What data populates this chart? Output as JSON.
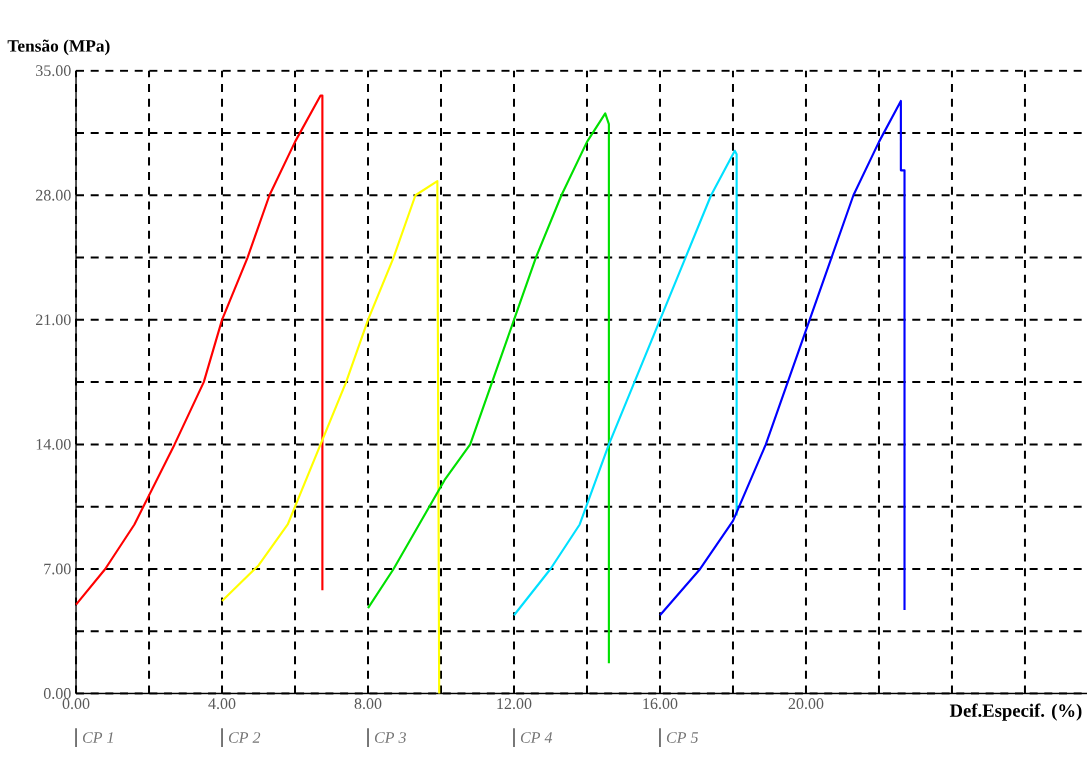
{
  "chart_data": {
    "type": "line",
    "xlabel": "Def.Especif. (%)",
    "ylabel": "Tensão (MPa)",
    "xlim": [
      0,
      27.7
    ],
    "ylim": [
      0,
      35
    ],
    "xticks": [
      {
        "value": 0,
        "label": "0.00"
      },
      {
        "value": 2,
        "label": null
      },
      {
        "value": 4,
        "label": "4.00"
      },
      {
        "value": 6,
        "label": null
      },
      {
        "value": 8,
        "label": "8.00"
      },
      {
        "value": 10,
        "label": null
      },
      {
        "value": 12,
        "label": "12.00"
      },
      {
        "value": 14,
        "label": null
      },
      {
        "value": 16,
        "label": "16.00"
      },
      {
        "value": 18,
        "label": null
      },
      {
        "value": 20,
        "label": "20.00"
      },
      {
        "value": 22,
        "label": null
      },
      {
        "value": 24,
        "label": null
      },
      {
        "value": 26,
        "label": null
      }
    ],
    "yticks": [
      {
        "value": 0,
        "label": "0.00"
      },
      {
        "value": 3.5,
        "label": null
      },
      {
        "value": 7,
        "label": "7.00"
      },
      {
        "value": 10.5,
        "label": null
      },
      {
        "value": 14,
        "label": "14.00"
      },
      {
        "value": 17.5,
        "label": null
      },
      {
        "value": 21,
        "label": "21.00"
      },
      {
        "value": 24.5,
        "label": null
      },
      {
        "value": 28,
        "label": "28.00"
      },
      {
        "value": 31.5,
        "label": null
      },
      {
        "value": 35,
        "label": "35.00"
      }
    ],
    "grid": true,
    "line_style": "solid",
    "series": [
      {
        "color": "#ff0000",
        "x": [
          0,
          0.8,
          1.6,
          2.7,
          3.5,
          4,
          4.7,
          5.3,
          6.0,
          6.7,
          6.75,
          6.75
        ],
        "values": [
          5,
          7,
          9.5,
          14,
          17.5,
          21,
          24.5,
          28,
          31,
          33.6,
          33.6,
          5.8
        ]
      },
      {
        "color": "#ffff00",
        "x": [
          4,
          5,
          5.8,
          6.7,
          7.4,
          8,
          8.7,
          9.3,
          9.9,
          9.95
        ],
        "values": [
          5.2,
          7.2,
          9.5,
          14,
          17.5,
          21,
          24.5,
          28,
          28.8,
          0
        ]
      },
      {
        "color": "#00e000",
        "x": [
          8,
          8.7,
          9.4,
          10.1,
          10.8,
          11.4,
          12,
          12.6,
          13.3,
          14.0,
          14.5,
          14.6,
          14.6
        ],
        "values": [
          4.8,
          7,
          9.5,
          12,
          14,
          17.5,
          21,
          24.5,
          28,
          31,
          32.6,
          32,
          1.7
        ]
      },
      {
        "color": "#00e0ff",
        "x": [
          12,
          13,
          13.8,
          14.6,
          15.3,
          16,
          16.7,
          17.4,
          18.05,
          18.1,
          18.1
        ],
        "values": [
          4.4,
          7,
          9.5,
          14,
          17.5,
          21,
          24.5,
          28,
          30.5,
          30.3,
          10
        ]
      },
      {
        "color": "#0000ff",
        "x": [
          16,
          17.1,
          18,
          18.9,
          19.5,
          20.1,
          20.7,
          21.3,
          22,
          22.6,
          22.6,
          22.7,
          22.7
        ],
        "values": [
          4.4,
          7,
          9.7,
          14,
          17.5,
          21,
          24.5,
          28,
          31,
          33.3,
          29.4,
          29.4,
          4.7
        ]
      }
    ],
    "annotations": [
      "CP 1",
      "CP 2",
      "CP 3",
      "CP 4",
      "CP 5"
    ]
  }
}
